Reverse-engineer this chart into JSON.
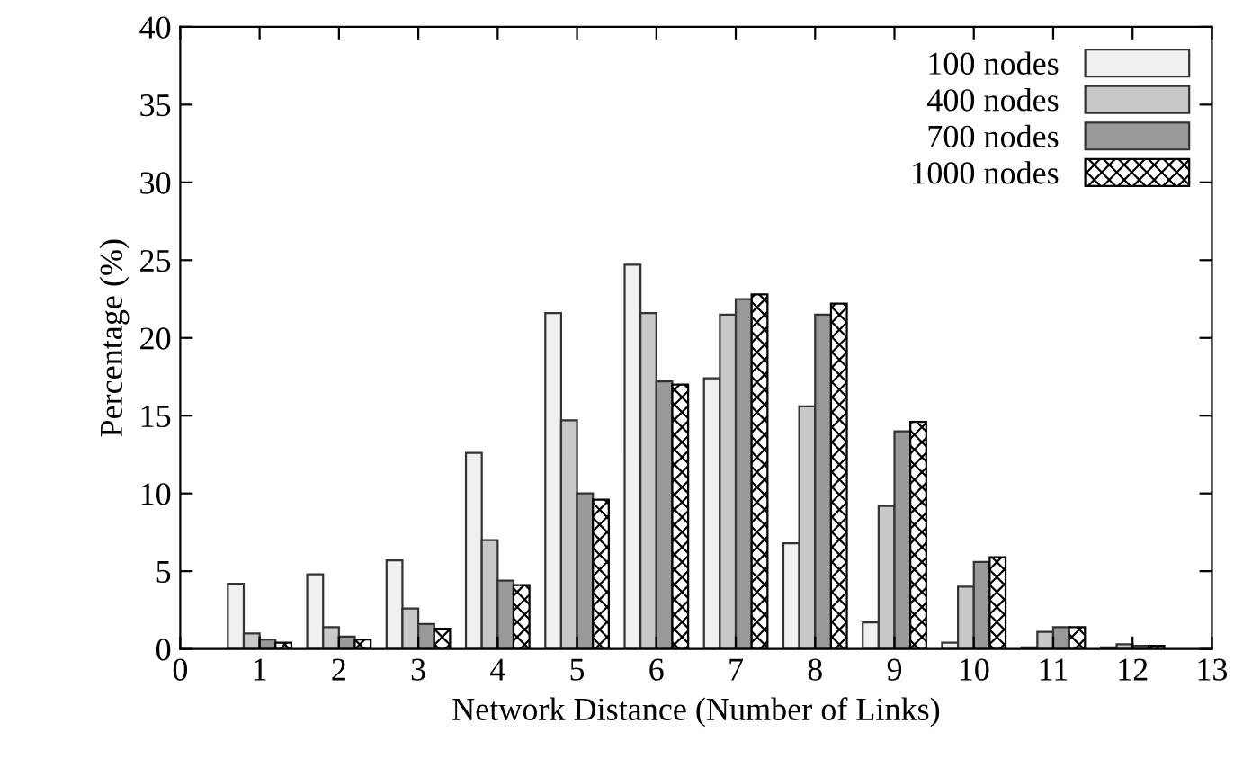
{
  "chart_data": {
    "type": "bar",
    "xlabel": "Network Distance (Number of Links)",
    "ylabel": "Percentage (%)",
    "x": [
      1,
      2,
      3,
      4,
      5,
      6,
      7,
      8,
      9,
      10,
      11,
      12
    ],
    "series": [
      {
        "name": "100 nodes",
        "color": "#f0f0f0",
        "values": [
          4.2,
          4.8,
          5.7,
          12.6,
          21.6,
          24.7,
          17.4,
          6.8,
          1.7,
          0.4,
          0.1,
          0.1
        ]
      },
      {
        "name": "400 nodes",
        "color": "#c8c8c8",
        "values": [
          1.0,
          1.4,
          2.6,
          7.0,
          14.7,
          21.6,
          21.5,
          15.6,
          9.2,
          4.0,
          1.1,
          0.3
        ]
      },
      {
        "name": "700 nodes",
        "color": "#999999",
        "values": [
          0.6,
          0.8,
          1.6,
          4.4,
          10.0,
          17.2,
          22.5,
          21.5,
          14.0,
          5.6,
          1.4,
          0.2
        ]
      },
      {
        "name": "1000 nodes",
        "color": "#000000",
        "values": [
          0.4,
          0.6,
          1.3,
          4.1,
          9.6,
          17.0,
          22.8,
          22.2,
          14.6,
          5.9,
          1.4,
          0.2
        ]
      }
    ],
    "xlim": [
      0,
      13
    ],
    "xticks": [
      0,
      1,
      2,
      3,
      4,
      5,
      6,
      7,
      8,
      9,
      10,
      11,
      12,
      13
    ],
    "ylim": [
      0,
      40
    ],
    "yticks": [
      0,
      5,
      10,
      15,
      20,
      25,
      30,
      35,
      40
    ],
    "grid": false,
    "legend": "top right"
  }
}
